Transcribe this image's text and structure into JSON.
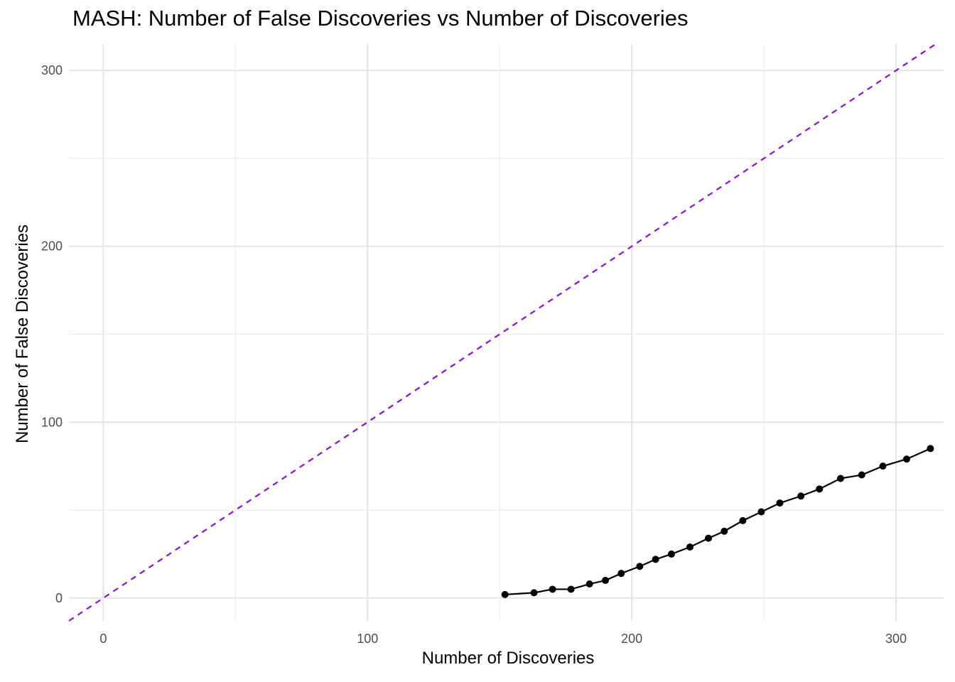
{
  "chart_data": {
    "type": "line",
    "title": "MASH: Number of False Discoveries vs Number of Discoveries",
    "xlabel": "Number of Discoveries",
    "ylabel": "Number of False Discoveries",
    "xlim": [
      -13,
      318
    ],
    "ylim": [
      -13,
      315
    ],
    "x_ticks": [
      0,
      100,
      200,
      300
    ],
    "y_ticks": [
      0,
      100,
      200,
      300
    ],
    "x_tick_labels": [
      "0",
      "100",
      "200",
      "300"
    ],
    "y_tick_labels": [
      "0",
      "100",
      "200",
      "300"
    ],
    "grid": true,
    "series": [
      {
        "color": "#000000",
        "markers": true,
        "x": [
          152,
          163,
          170,
          177,
          184,
          190,
          196,
          203,
          209,
          215,
          222,
          229,
          235,
          242,
          249,
          256,
          264,
          271,
          279,
          287,
          295,
          304,
          313
        ],
        "y": [
          2,
          3,
          5,
          5,
          8,
          10,
          14,
          18,
          22,
          25,
          29,
          34,
          38,
          44,
          49,
          54,
          58,
          62,
          68,
          70,
          75,
          79,
          85
        ]
      }
    ],
    "reference_line": {
      "type": "y=x",
      "style": "dashed",
      "color": "#8a0ee6"
    }
  }
}
